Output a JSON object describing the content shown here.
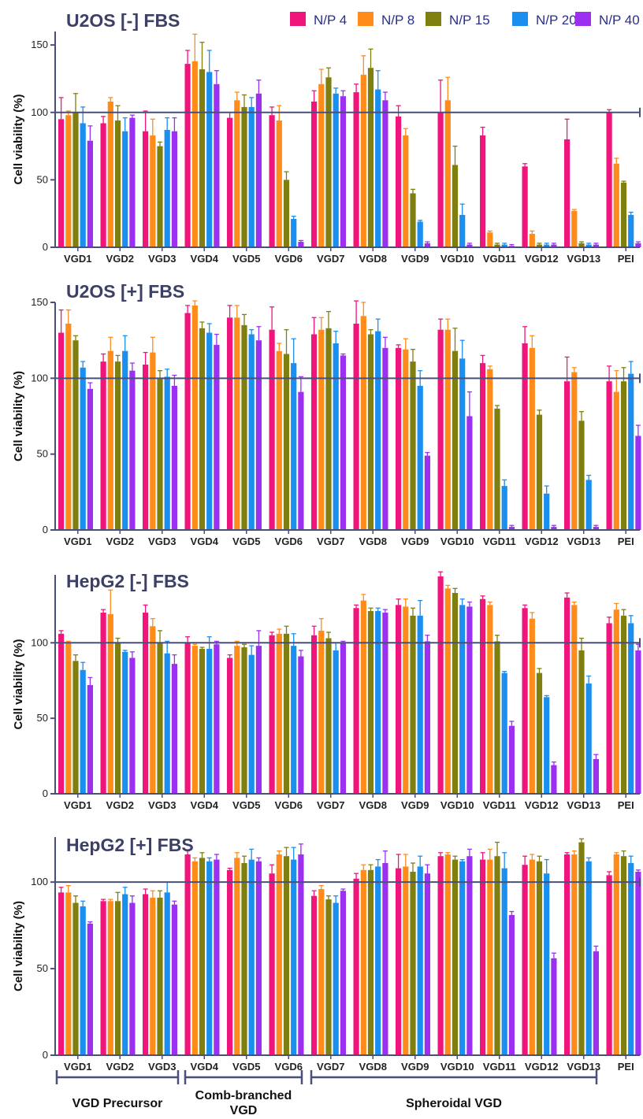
{
  "legend": {
    "items": [
      {
        "label": "N/P 4",
        "color": "#f0157a"
      },
      {
        "label": "N/P 8",
        "color": "#ff8c1a"
      },
      {
        "label": "N/P 15",
        "color": "#7f7f10"
      },
      {
        "label": "N/P 20",
        "color": "#1a8ff0"
      },
      {
        "label": "N/P 40",
        "color": "#9b30f0"
      }
    ]
  },
  "groups": [
    {
      "label": "VGD Precursor"
    },
    {
      "label": "Comb-branched VGD"
    },
    {
      "label": "Spheroidal VGD"
    }
  ],
  "chart_data": [
    {
      "type": "bar",
      "title": "U2OS [-] FBS",
      "ylabel": "Cell viability (%)",
      "ylim": [
        0,
        160
      ],
      "yticks": [
        0,
        50,
        100,
        150
      ],
      "reference_line": 100,
      "categories": [
        "VGD1",
        "VGD2",
        "VGD3",
        "VGD4",
        "VGD5",
        "VGD6",
        "VGD7",
        "VGD8",
        "VGD9",
        "VGD10",
        "VGD11",
        "VGD12",
        "VGD13",
        "PEI"
      ],
      "series": [
        {
          "name": "N/P 4",
          "values": [
            95,
            92,
            86,
            136,
            96,
            98,
            108,
            115,
            97,
            100,
            83,
            60,
            80,
            100
          ],
          "errors": [
            16,
            5,
            15,
            10,
            4,
            6,
            8,
            6,
            8,
            24,
            6,
            2,
            15,
            2
          ]
        },
        {
          "name": "N/P 8",
          "values": [
            98,
            108,
            83,
            138,
            109,
            94,
            121,
            128,
            83,
            109,
            11,
            10,
            27,
            62
          ],
          "errors": [
            3,
            3,
            12,
            20,
            6,
            11,
            11,
            14,
            5,
            17,
            1,
            2,
            1,
            4
          ]
        },
        {
          "name": "N/P 15",
          "values": [
            100,
            94,
            75,
            132,
            104,
            50,
            126,
            133,
            40,
            61,
            2,
            2,
            3,
            48
          ],
          "errors": [
            14,
            11,
            3,
            20,
            9,
            6,
            7,
            14,
            3,
            14,
            1,
            1,
            1,
            1
          ]
        },
        {
          "name": "N/P 20",
          "values": [
            92,
            86,
            87,
            130,
            104,
            21,
            114,
            117,
            19,
            24,
            2,
            2,
            2,
            24
          ],
          "errors": [
            12,
            10,
            9,
            16,
            7,
            2,
            4,
            14,
            1,
            8,
            1,
            1,
            1,
            2
          ]
        },
        {
          "name": "N/P 40",
          "values": [
            79,
            96,
            86,
            121,
            114,
            4,
            112,
            109,
            3,
            2,
            1,
            2,
            2,
            3
          ],
          "errors": [
            11,
            2,
            10,
            10,
            10,
            1,
            4,
            6,
            1,
            1,
            1,
            1,
            1,
            1
          ]
        }
      ]
    },
    {
      "type": "bar",
      "title": "U2OS [+] FBS",
      "ylabel": "Cell viability (%)",
      "ylim": [
        0,
        150
      ],
      "yticks": [
        0,
        50,
        100,
        150
      ],
      "reference_line": 100,
      "categories": [
        "VGD1",
        "VGD2",
        "VGD3",
        "VGD4",
        "VGD5",
        "VGD6",
        "VGD7",
        "VGD8",
        "VGD9",
        "VGD10",
        "VGD11",
        "VGD12",
        "VGD13",
        "PEI"
      ],
      "series": [
        {
          "name": "N/P 4",
          "values": [
            130,
            111,
            109,
            143,
            140,
            132,
            129,
            136,
            120,
            132,
            110,
            123,
            98,
            98
          ],
          "errors": [
            15,
            5,
            8,
            5,
            8,
            15,
            11,
            15,
            2,
            7,
            5,
            11,
            16,
            10
          ]
        },
        {
          "name": "N/P 8",
          "values": [
            136,
            118,
            117,
            148,
            140,
            118,
            132,
            141,
            119,
            132,
            106,
            120,
            104,
            91
          ],
          "errors": [
            9,
            9,
            10,
            3,
            8,
            5,
            8,
            9,
            7,
            7,
            2,
            8,
            3,
            14
          ]
        },
        {
          "name": "N/P 15",
          "values": [
            125,
            111,
            100,
            133,
            135,
            116,
            133,
            129,
            111,
            118,
            80,
            76,
            72,
            98
          ],
          "errors": [
            3,
            4,
            5,
            4,
            7,
            16,
            11,
            3,
            8,
            15,
            2,
            3,
            6,
            9
          ]
        },
        {
          "name": "N/P 20",
          "values": [
            107,
            118,
            101,
            130,
            129,
            110,
            123,
            131,
            95,
            113,
            29,
            24,
            33,
            103
          ],
          "errors": [
            4,
            10,
            5,
            6,
            3,
            16,
            8,
            8,
            10,
            12,
            4,
            5,
            3,
            8
          ]
        },
        {
          "name": "N/P 40",
          "values": [
            93,
            105,
            95,
            122,
            125,
            91,
            115,
            120,
            49,
            75,
            2,
            2,
            2,
            62
          ],
          "errors": [
            4,
            5,
            7,
            7,
            9,
            10,
            1,
            7,
            2,
            16,
            1,
            1,
            1,
            7
          ]
        }
      ]
    },
    {
      "type": "bar",
      "title": "HepG2 [-] FBS",
      "ylabel": "Cell viability (%)",
      "ylim": [
        0,
        145
      ],
      "yticks": [
        0,
        50,
        100
      ],
      "reference_line": 100,
      "categories": [
        "VGD1",
        "VGD2",
        "VGD3",
        "VGD4",
        "VGD5",
        "VGD6",
        "VGD7",
        "VGD8",
        "VGD9",
        "VGD10",
        "VGD11",
        "VGD12",
        "VGD13",
        "PEI"
      ],
      "series": [
        {
          "name": "N/P 4",
          "values": [
            106,
            120,
            120,
            100,
            90,
            105,
            105,
            123,
            125,
            144,
            129,
            123,
            130,
            113
          ],
          "errors": [
            2,
            2,
            5,
            4,
            2,
            2,
            6,
            2,
            4,
            3,
            2,
            2,
            3,
            4
          ]
        },
        {
          "name": "N/P 8",
          "values": [
            100,
            119,
            111,
            98,
            98,
            106,
            108,
            128,
            124,
            136,
            125,
            116,
            125,
            122
          ],
          "errors": [
            1,
            16,
            5,
            1,
            3,
            3,
            8,
            4,
            5,
            2,
            2,
            4,
            2,
            4
          ]
        },
        {
          "name": "N/P 15",
          "values": [
            88,
            100,
            100,
            96,
            97,
            106,
            103,
            121,
            118,
            133,
            101,
            80,
            95,
            118
          ],
          "errors": [
            4,
            3,
            8,
            1,
            2,
            5,
            4,
            2,
            5,
            3,
            4,
            3,
            8,
            4
          ]
        },
        {
          "name": "N/P 20",
          "values": [
            82,
            94,
            93,
            96,
            92,
            98,
            95,
            121,
            118,
            125,
            80,
            64,
            73,
            113
          ],
          "errors": [
            5,
            1,
            8,
            8,
            6,
            8,
            5,
            2,
            10,
            4,
            1,
            1,
            5,
            5
          ]
        },
        {
          "name": "N/P 40",
          "values": [
            72,
            90,
            86,
            99,
            98,
            91,
            100,
            120,
            101,
            124,
            45,
            19,
            23,
            95
          ],
          "errors": [
            5,
            4,
            6,
            2,
            10,
            4,
            1,
            2,
            4,
            3,
            3,
            2,
            3,
            4
          ]
        }
      ]
    },
    {
      "type": "bar",
      "title": "HepG2 [+] FBS",
      "ylabel": "Cell viability (%)",
      "ylim": [
        0,
        126
      ],
      "yticks": [
        0,
        50,
        100
      ],
      "reference_line": 100,
      "categories": [
        "VGD1",
        "VGD2",
        "VGD3",
        "VGD4",
        "VGD5",
        "VGD6",
        "VGD7",
        "VGD8",
        "VGD9",
        "VGD10",
        "VGD11",
        "VGD12",
        "VGD13",
        "PEI"
      ],
      "series": [
        {
          "name": "N/P 4",
          "values": [
            94,
            89,
            93,
            116,
            107,
            105,
            92,
            102,
            108,
            115,
            113,
            110,
            116,
            104
          ],
          "errors": [
            3,
            1,
            3,
            2,
            1,
            5,
            3,
            3,
            8,
            2,
            4,
            5,
            1,
            2
          ]
        },
        {
          "name": "N/P 8",
          "values": [
            94,
            89,
            91,
            112,
            114,
            116,
            96,
            107,
            109,
            116,
            113,
            113,
            116,
            116
          ],
          "errors": [
            4,
            1,
            4,
            2,
            3,
            2,
            2,
            3,
            7,
            1,
            6,
            3,
            2,
            1
          ]
        },
        {
          "name": "N/P 15",
          "values": [
            88,
            89,
            91,
            114,
            111,
            115,
            90,
            107,
            106,
            113,
            115,
            112,
            123,
            115
          ],
          "errors": [
            4,
            5,
            4,
            3,
            4,
            5,
            2,
            3,
            5,
            2,
            8,
            3,
            2,
            3
          ]
        },
        {
          "name": "N/P 20",
          "values": [
            86,
            93,
            94,
            112,
            113,
            113,
            88,
            109,
            109,
            112,
            108,
            105,
            112,
            111
          ],
          "errors": [
            3,
            4,
            6,
            2,
            6,
            7,
            4,
            4,
            6,
            1,
            9,
            8,
            2,
            4
          ]
        },
        {
          "name": "N/P 40",
          "values": [
            76,
            88,
            87,
            113,
            112,
            116,
            95,
            111,
            105,
            115,
            81,
            56,
            60,
            106
          ],
          "errors": [
            1,
            4,
            2,
            3,
            2,
            6,
            1,
            7,
            5,
            4,
            2,
            3,
            3,
            1
          ]
        }
      ]
    }
  ]
}
